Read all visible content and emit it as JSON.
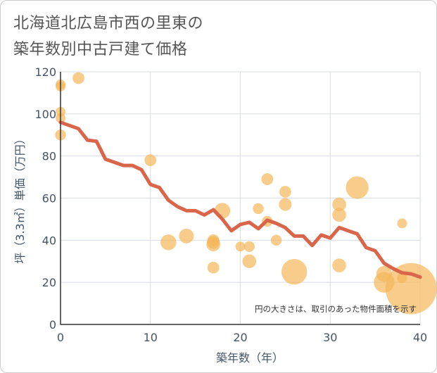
{
  "title_line1": "北海道北広島市西の里東の",
  "title_line2": "築年数別中古戸建て価格",
  "chart_data": {
    "type": "scatter",
    "title": "北海道北広島市西の里東の築年数別中古戸建て価格",
    "xlabel": "築年数（年）",
    "ylabel": "坪（3.3㎡）単価（万円）",
    "xlim": [
      0,
      40
    ],
    "ylim": [
      0,
      120
    ],
    "xticks": [
      "0",
      "10",
      "20",
      "30",
      "40"
    ],
    "yticks": [
      "0",
      "20",
      "40",
      "60",
      "80",
      "100",
      "120"
    ],
    "grid": true,
    "annotation": "円の大きさは、取引のあった物件面積を示す",
    "colors": {
      "bubble": "#f5b75a",
      "line": "#d9654a",
      "grid": "#d6dde6"
    },
    "bubbles": [
      {
        "x": 0,
        "y": 114,
        "s": 1
      },
      {
        "x": 0,
        "y": 113,
        "s": 1
      },
      {
        "x": 0,
        "y": 101,
        "s": 1
      },
      {
        "x": 0,
        "y": 98,
        "s": 1
      },
      {
        "x": 0,
        "y": 90,
        "s": 1.1
      },
      {
        "x": 2,
        "y": 117,
        "s": 1.2
      },
      {
        "x": 10,
        "y": 78,
        "s": 1.2
      },
      {
        "x": 12,
        "y": 39,
        "s": 1.6
      },
      {
        "x": 14,
        "y": 42,
        "s": 1.5
      },
      {
        "x": 17,
        "y": 40,
        "s": 1.2
      },
      {
        "x": 17,
        "y": 39,
        "s": 1.3
      },
      {
        "x": 17,
        "y": 38,
        "s": 1.4
      },
      {
        "x": 17,
        "y": 27,
        "s": 1.2
      },
      {
        "x": 18,
        "y": 54,
        "s": 1.6
      },
      {
        "x": 20,
        "y": 37,
        "s": 1
      },
      {
        "x": 21,
        "y": 37,
        "s": 1.1
      },
      {
        "x": 21,
        "y": 30,
        "s": 1.4
      },
      {
        "x": 22,
        "y": 55,
        "s": 1.1
      },
      {
        "x": 23,
        "y": 69,
        "s": 1.2
      },
      {
        "x": 23,
        "y": 49,
        "s": 1.1
      },
      {
        "x": 24,
        "y": 40,
        "s": 1.1
      },
      {
        "x": 25,
        "y": 63,
        "s": 1.2
      },
      {
        "x": 25,
        "y": 57,
        "s": 1.3
      },
      {
        "x": 26,
        "y": 25,
        "s": 2.6
      },
      {
        "x": 31,
        "y": 57,
        "s": 1.4
      },
      {
        "x": 31,
        "y": 52,
        "s": 1.4
      },
      {
        "x": 31,
        "y": 28,
        "s": 1.4
      },
      {
        "x": 33,
        "y": 65,
        "s": 2.3
      },
      {
        "x": 36,
        "y": 24,
        "s": 1.6
      },
      {
        "x": 36,
        "y": 20,
        "s": 2.1
      },
      {
        "x": 38,
        "y": 48,
        "s": 1
      },
      {
        "x": 38,
        "y": 22,
        "s": 1
      },
      {
        "x": 39,
        "y": 17,
        "s": 5.2
      }
    ],
    "line": {
      "x": [
        0,
        1,
        2,
        3,
        4,
        5,
        6,
        7,
        8,
        9,
        10,
        11,
        12,
        13,
        14,
        15,
        16,
        17,
        18,
        19,
        20,
        21,
        22,
        23,
        24,
        25,
        26,
        27,
        28,
        29,
        30,
        31,
        32,
        33,
        34,
        35,
        36,
        37,
        38,
        39,
        40
      ],
      "y": [
        96,
        94.5,
        93,
        87.5,
        87,
        78.5,
        77,
        75.5,
        75.5,
        73.5,
        66.5,
        65,
        59,
        56,
        54,
        54,
        52,
        54.5,
        50,
        44.5,
        47.5,
        48.5,
        45.5,
        49.5,
        48,
        46,
        42,
        42,
        37.5,
        42.5,
        41,
        46,
        44.5,
        43,
        36.5,
        35,
        29,
        26.5,
        24.5,
        24,
        22.5
      ]
    }
  }
}
